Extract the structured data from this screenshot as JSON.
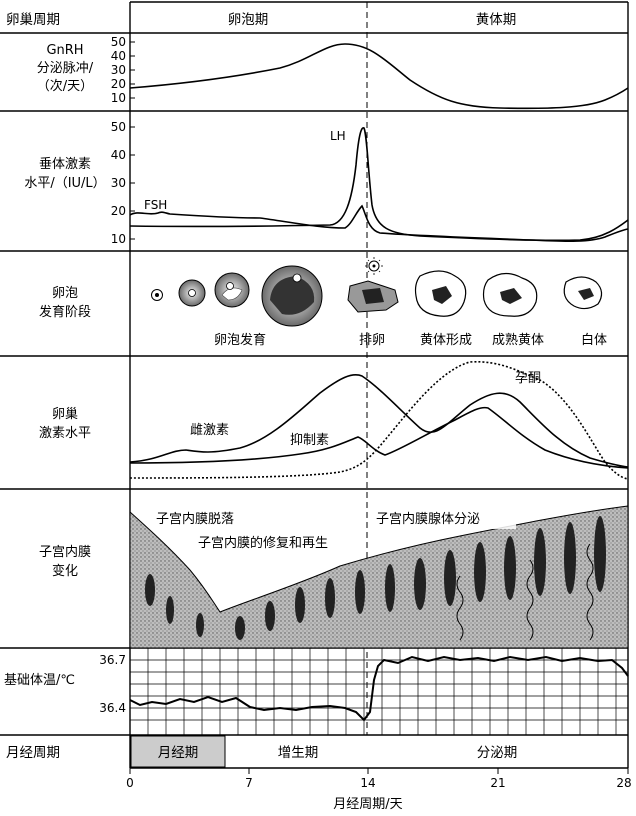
{
  "header": {
    "row_label": "卵巢周期",
    "follicular": "卵泡期",
    "luteal": "黄体期"
  },
  "gnrh": {
    "label_lines": [
      "GnRH",
      "分泌脉冲/",
      "（次/天）"
    ],
    "ticks": [
      "50",
      "40",
      "30",
      "20",
      "10"
    ]
  },
  "pituitary": {
    "label_lines": [
      "垂体激素",
      "水平/（IU/L）"
    ],
    "ticks": [
      "50",
      "40",
      "30",
      "20",
      "10"
    ],
    "lh": "LH",
    "fsh": "FSH"
  },
  "follicle": {
    "label_lines": [
      "卵泡",
      "发育阶段"
    ],
    "development": "卵泡发育",
    "ovulation": "排卵",
    "corpus_formation": "黄体形成",
    "mature_corpus": "成熟黄体",
    "albicans": "白体"
  },
  "ovarian": {
    "label_lines": [
      "卵巢",
      "激素水平"
    ],
    "estrogen": "雌激素",
    "inhibin": "抑制素",
    "progesterone": "孕酮"
  },
  "endometrium": {
    "label_lines": [
      "子宫内膜",
      "变化"
    ],
    "shedding": "子宫内膜脱落",
    "repair": "子宫内膜的修复和再生",
    "secretion": "子宫内膜腺体分泌"
  },
  "bbt": {
    "label": "基础体温/℃",
    "ticks": [
      "36.7",
      "36.4"
    ]
  },
  "menstrual": {
    "row_label": "月经周期",
    "menses": "月经期",
    "proliferative": "增生期",
    "secretory": "分泌期"
  },
  "x_axis": {
    "ticks": [
      "0",
      "7",
      "14",
      "21",
      "28"
    ],
    "title": "月经周期/天"
  },
  "colors": {
    "line": "#000000",
    "menses_fill": "#cccccc",
    "tissue": "#9a9a9a"
  }
}
